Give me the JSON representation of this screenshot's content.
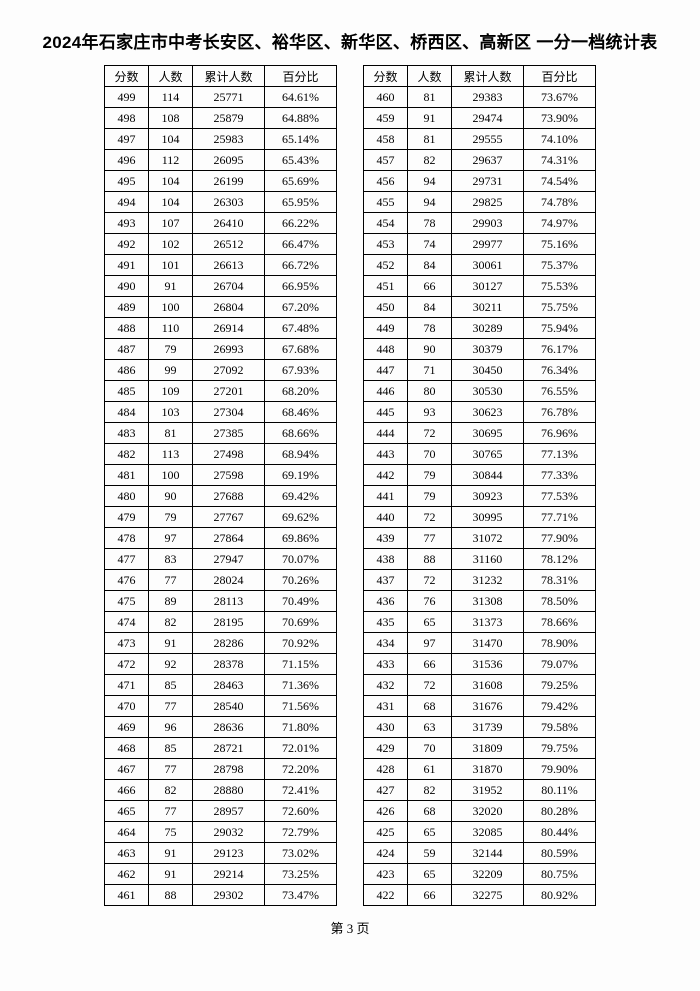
{
  "title": "2024年石家庄市中考长安区、裕华区、新华区、桥西区、高新区 一分一档统计表",
  "headers": {
    "score": "分数",
    "count": "人数",
    "cum": "累计人数",
    "pct": "百分比"
  },
  "footer": "第 3 页",
  "left": [
    {
      "s": 499,
      "c": 114,
      "m": 25771,
      "p": "64.61%"
    },
    {
      "s": 498,
      "c": 108,
      "m": 25879,
      "p": "64.88%"
    },
    {
      "s": 497,
      "c": 104,
      "m": 25983,
      "p": "65.14%"
    },
    {
      "s": 496,
      "c": 112,
      "m": 26095,
      "p": "65.43%"
    },
    {
      "s": 495,
      "c": 104,
      "m": 26199,
      "p": "65.69%"
    },
    {
      "s": 494,
      "c": 104,
      "m": 26303,
      "p": "65.95%"
    },
    {
      "s": 493,
      "c": 107,
      "m": 26410,
      "p": "66.22%"
    },
    {
      "s": 492,
      "c": 102,
      "m": 26512,
      "p": "66.47%"
    },
    {
      "s": 491,
      "c": 101,
      "m": 26613,
      "p": "66.72%"
    },
    {
      "s": 490,
      "c": 91,
      "m": 26704,
      "p": "66.95%"
    },
    {
      "s": 489,
      "c": 100,
      "m": 26804,
      "p": "67.20%"
    },
    {
      "s": 488,
      "c": 110,
      "m": 26914,
      "p": "67.48%"
    },
    {
      "s": 487,
      "c": 79,
      "m": 26993,
      "p": "67.68%"
    },
    {
      "s": 486,
      "c": 99,
      "m": 27092,
      "p": "67.93%"
    },
    {
      "s": 485,
      "c": 109,
      "m": 27201,
      "p": "68.20%"
    },
    {
      "s": 484,
      "c": 103,
      "m": 27304,
      "p": "68.46%"
    },
    {
      "s": 483,
      "c": 81,
      "m": 27385,
      "p": "68.66%"
    },
    {
      "s": 482,
      "c": 113,
      "m": 27498,
      "p": "68.94%"
    },
    {
      "s": 481,
      "c": 100,
      "m": 27598,
      "p": "69.19%"
    },
    {
      "s": 480,
      "c": 90,
      "m": 27688,
      "p": "69.42%"
    },
    {
      "s": 479,
      "c": 79,
      "m": 27767,
      "p": "69.62%"
    },
    {
      "s": 478,
      "c": 97,
      "m": 27864,
      "p": "69.86%"
    },
    {
      "s": 477,
      "c": 83,
      "m": 27947,
      "p": "70.07%"
    },
    {
      "s": 476,
      "c": 77,
      "m": 28024,
      "p": "70.26%"
    },
    {
      "s": 475,
      "c": 89,
      "m": 28113,
      "p": "70.49%"
    },
    {
      "s": 474,
      "c": 82,
      "m": 28195,
      "p": "70.69%"
    },
    {
      "s": 473,
      "c": 91,
      "m": 28286,
      "p": "70.92%"
    },
    {
      "s": 472,
      "c": 92,
      "m": 28378,
      "p": "71.15%"
    },
    {
      "s": 471,
      "c": 85,
      "m": 28463,
      "p": "71.36%"
    },
    {
      "s": 470,
      "c": 77,
      "m": 28540,
      "p": "71.56%"
    },
    {
      "s": 469,
      "c": 96,
      "m": 28636,
      "p": "71.80%"
    },
    {
      "s": 468,
      "c": 85,
      "m": 28721,
      "p": "72.01%"
    },
    {
      "s": 467,
      "c": 77,
      "m": 28798,
      "p": "72.20%"
    },
    {
      "s": 466,
      "c": 82,
      "m": 28880,
      "p": "72.41%"
    },
    {
      "s": 465,
      "c": 77,
      "m": 28957,
      "p": "72.60%"
    },
    {
      "s": 464,
      "c": 75,
      "m": 29032,
      "p": "72.79%"
    },
    {
      "s": 463,
      "c": 91,
      "m": 29123,
      "p": "73.02%"
    },
    {
      "s": 462,
      "c": 91,
      "m": 29214,
      "p": "73.25%"
    },
    {
      "s": 461,
      "c": 88,
      "m": 29302,
      "p": "73.47%"
    }
  ],
  "right": [
    {
      "s": 460,
      "c": 81,
      "m": 29383,
      "p": "73.67%"
    },
    {
      "s": 459,
      "c": 91,
      "m": 29474,
      "p": "73.90%"
    },
    {
      "s": 458,
      "c": 81,
      "m": 29555,
      "p": "74.10%"
    },
    {
      "s": 457,
      "c": 82,
      "m": 29637,
      "p": "74.31%"
    },
    {
      "s": 456,
      "c": 94,
      "m": 29731,
      "p": "74.54%"
    },
    {
      "s": 455,
      "c": 94,
      "m": 29825,
      "p": "74.78%"
    },
    {
      "s": 454,
      "c": 78,
      "m": 29903,
      "p": "74.97%"
    },
    {
      "s": 453,
      "c": 74,
      "m": 29977,
      "p": "75.16%"
    },
    {
      "s": 452,
      "c": 84,
      "m": 30061,
      "p": "75.37%"
    },
    {
      "s": 451,
      "c": 66,
      "m": 30127,
      "p": "75.53%"
    },
    {
      "s": 450,
      "c": 84,
      "m": 30211,
      "p": "75.75%"
    },
    {
      "s": 449,
      "c": 78,
      "m": 30289,
      "p": "75.94%"
    },
    {
      "s": 448,
      "c": 90,
      "m": 30379,
      "p": "76.17%"
    },
    {
      "s": 447,
      "c": 71,
      "m": 30450,
      "p": "76.34%"
    },
    {
      "s": 446,
      "c": 80,
      "m": 30530,
      "p": "76.55%"
    },
    {
      "s": 445,
      "c": 93,
      "m": 30623,
      "p": "76.78%"
    },
    {
      "s": 444,
      "c": 72,
      "m": 30695,
      "p": "76.96%"
    },
    {
      "s": 443,
      "c": 70,
      "m": 30765,
      "p": "77.13%"
    },
    {
      "s": 442,
      "c": 79,
      "m": 30844,
      "p": "77.33%"
    },
    {
      "s": 441,
      "c": 79,
      "m": 30923,
      "p": "77.53%"
    },
    {
      "s": 440,
      "c": 72,
      "m": 30995,
      "p": "77.71%"
    },
    {
      "s": 439,
      "c": 77,
      "m": 31072,
      "p": "77.90%"
    },
    {
      "s": 438,
      "c": 88,
      "m": 31160,
      "p": "78.12%"
    },
    {
      "s": 437,
      "c": 72,
      "m": 31232,
      "p": "78.31%"
    },
    {
      "s": 436,
      "c": 76,
      "m": 31308,
      "p": "78.50%"
    },
    {
      "s": 435,
      "c": 65,
      "m": 31373,
      "p": "78.66%"
    },
    {
      "s": 434,
      "c": 97,
      "m": 31470,
      "p": "78.90%"
    },
    {
      "s": 433,
      "c": 66,
      "m": 31536,
      "p": "79.07%"
    },
    {
      "s": 432,
      "c": 72,
      "m": 31608,
      "p": "79.25%"
    },
    {
      "s": 431,
      "c": 68,
      "m": 31676,
      "p": "79.42%"
    },
    {
      "s": 430,
      "c": 63,
      "m": 31739,
      "p": "79.58%"
    },
    {
      "s": 429,
      "c": 70,
      "m": 31809,
      "p": "79.75%"
    },
    {
      "s": 428,
      "c": 61,
      "m": 31870,
      "p": "79.90%"
    },
    {
      "s": 427,
      "c": 82,
      "m": 31952,
      "p": "80.11%"
    },
    {
      "s": 426,
      "c": 68,
      "m": 32020,
      "p": "80.28%"
    },
    {
      "s": 425,
      "c": 65,
      "m": 32085,
      "p": "80.44%"
    },
    {
      "s": 424,
      "c": 59,
      "m": 32144,
      "p": "80.59%"
    },
    {
      "s": 423,
      "c": 65,
      "m": 32209,
      "p": "80.75%"
    },
    {
      "s": 422,
      "c": 66,
      "m": 32275,
      "p": "80.92%"
    }
  ]
}
